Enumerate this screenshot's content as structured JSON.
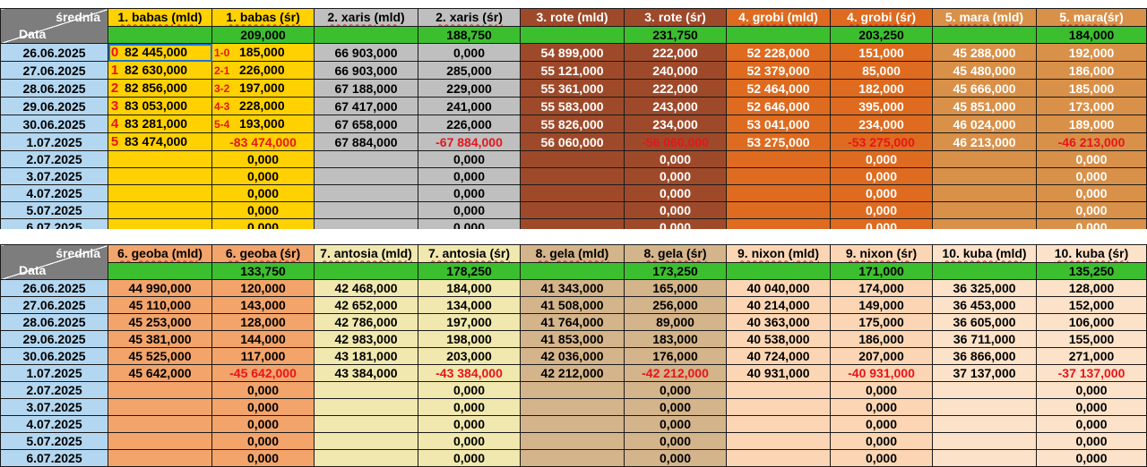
{
  "sheet": {
    "corner_top": "średnia",
    "corner_bottom": "Data",
    "zero_value": "0,000",
    "dates": [
      "26.06.2025",
      "27.06.2025",
      "28.06.2025",
      "29.06.2025",
      "30.06.2025",
      "1.07.2025",
      "2.07.2025",
      "3.07.2025",
      "4.07.2025",
      "5.07.2025",
      "6.07.2025"
    ],
    "babas_index": [
      "0",
      "1",
      "2",
      "3",
      "4",
      "5"
    ],
    "babas_diff_index": [
      "1-0",
      "2-1",
      "3-2",
      "4-3",
      "5-4"
    ],
    "table1": [
      {
        "head_mld": "1. babas (mld)",
        "head_sr": "1. babas (śr)",
        "avg": "209,000",
        "mld": [
          "82 445,000",
          "82 630,000",
          "82 856,000",
          "83 053,000",
          "83 281,000",
          "83 474,000"
        ],
        "sr": [
          "185,000",
          "226,000",
          "197,000",
          "228,000",
          "193,000",
          "-83 474,000"
        ],
        "color_mld": "#ffd100",
        "color_sr": "#ffd100",
        "text": "#000000",
        "neg": "#e8141a"
      },
      {
        "head_mld": "2. xaris (mld)",
        "head_sr": "2. xaris (śr)",
        "avg": "188,750",
        "mld": [
          "66 903,000",
          "66 903,000",
          "67 188,000",
          "67 417,000",
          "67 658,000",
          "67 884,000"
        ],
        "sr": [
          "0,000",
          "285,000",
          "229,000",
          "241,000",
          "226,000",
          "-67 884,000"
        ],
        "color_mld": "#bfbfbf",
        "color_sr": "#bfbfbf",
        "text": "#000000",
        "neg": "#e8141a"
      },
      {
        "head_mld": "3. rote (mld)",
        "head_sr": "3. rote (śr)",
        "avg": "231,750",
        "mld": [
          "54 899,000",
          "55 121,000",
          "55 361,000",
          "55 583,000",
          "55 826,000",
          "56 060,000"
        ],
        "sr": [
          "222,000",
          "240,000",
          "222,000",
          "243,000",
          "234,000",
          "-56 060,000"
        ],
        "color_mld": "#9e4a2a",
        "color_sr": "#9e4a2a",
        "text": "#ffffff",
        "neg": "#e8141a"
      },
      {
        "head_mld": "4. grobi (mld)",
        "head_sr": "4. grobi (śr)",
        "avg": "203,250",
        "mld": [
          "52 228,000",
          "52 379,000",
          "52 464,000",
          "52 646,000",
          "53 041,000",
          "53 275,000"
        ],
        "sr": [
          "151,000",
          "85,000",
          "182,000",
          "395,000",
          "234,000",
          "-53 275,000"
        ],
        "color_mld": "#de6b1f",
        "color_sr": "#de6b1f",
        "text": "#ffffff",
        "neg": "#e8141a"
      },
      {
        "head_mld": "5. mara (mld)",
        "head_sr": "5. mara(śr)",
        "avg": "184,000",
        "mld": [
          "45 288,000",
          "45 480,000",
          "45 666,000",
          "45 851,000",
          "46 024,000",
          "46 213,000"
        ],
        "sr": [
          "192,000",
          "186,000",
          "185,000",
          "173,000",
          "189,000",
          "-46 213,000"
        ],
        "color_mld": "#d99048",
        "color_sr": "#d99048",
        "text": "#ffffff",
        "neg": "#e8141a"
      }
    ],
    "table2": [
      {
        "head_mld": "6. geoba (mld)",
        "head_sr": "6. geoba (śr)",
        "avg": "133,750",
        "mld": [
          "44 990,000",
          "45 110,000",
          "45 253,000",
          "45 381,000",
          "45 525,000",
          "45 642,000"
        ],
        "sr": [
          "120,000",
          "143,000",
          "128,000",
          "144,000",
          "117,000",
          "-45 642,000"
        ],
        "color_mld": "#f2a46b",
        "color_sr": "#f2a46b",
        "text": "#000000",
        "neg": "#e8141a"
      },
      {
        "head_mld": "7. antosia (mld)",
        "head_sr": "7. antosia (śr)",
        "avg": "178,250",
        "mld": [
          "42 468,000",
          "42 652,000",
          "42 786,000",
          "42 983,000",
          "43 181,000",
          "43 384,000"
        ],
        "sr": [
          "184,000",
          "134,000",
          "197,000",
          "198,000",
          "203,000",
          "-43 384,000"
        ],
        "color_mld": "#f0e8ae",
        "color_sr": "#f0e8ae",
        "text": "#000000",
        "neg": "#e8141a"
      },
      {
        "head_mld": "8. gela (mld)",
        "head_sr": "8. gela (śr)",
        "avg": "173,250",
        "mld": [
          "41 343,000",
          "41 508,000",
          "41 764,000",
          "41 853,000",
          "42 036,000",
          "42 212,000"
        ],
        "sr": [
          "165,000",
          "256,000",
          "89,000",
          "183,000",
          "176,000",
          "-42 212,000"
        ],
        "color_mld": "#d4b48a",
        "color_sr": "#d4b48a",
        "text": "#000000",
        "neg": "#e8141a"
      },
      {
        "head_mld": "9. nixon (mld)",
        "head_sr": "9. nixon (śr)",
        "avg": "171,000",
        "mld": [
          "40 040,000",
          "40 214,000",
          "40 363,000",
          "40 538,000",
          "40 724,000",
          "40 931,000"
        ],
        "sr": [
          "174,000",
          "149,000",
          "175,000",
          "186,000",
          "207,000",
          "-40 931,000"
        ],
        "color_mld": "#fcd6b4",
        "color_sr": "#fcd6b4",
        "text": "#000000",
        "neg": "#e8141a"
      },
      {
        "head_mld": "10. kuba (mld)",
        "head_sr": "10. kuba (śr)",
        "avg": "135,250",
        "mld": [
          "36 325,000",
          "36 453,000",
          "36 605,000",
          "36 711,000",
          "36 866,000",
          "37 137,000"
        ],
        "sr": [
          "128,000",
          "152,000",
          "106,000",
          "155,000",
          "271,000",
          "-37 137,000"
        ],
        "color_mld": "#fce2c8",
        "color_sr": "#fce2c8",
        "text": "#000000",
        "neg": "#e8141a"
      }
    ]
  }
}
